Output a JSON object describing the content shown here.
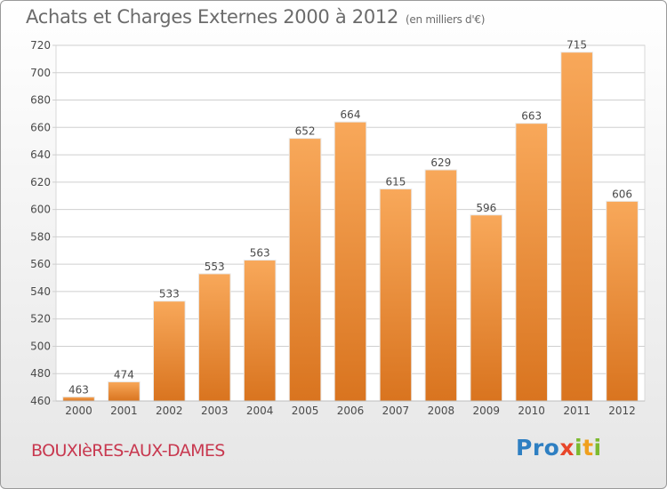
{
  "title": "Achats et Charges Externes 2000 à 2012",
  "unit_note": "(en milliers d'€)",
  "commune": "BOUXIèRES-AUX-DAMES",
  "logo": {
    "text": "Proxiti",
    "letters": [
      {
        "ch": "P",
        "color": "#2e7fc2"
      },
      {
        "ch": "r",
        "color": "#2e7fc2"
      },
      {
        "ch": "o",
        "color": "#2e7fc2"
      },
      {
        "ch": "x",
        "color": "#e8462a"
      },
      {
        "ch": "i",
        "color": "#7cba2f"
      },
      {
        "ch": "t",
        "color": "#f0a01e"
      },
      {
        "ch": "i",
        "color": "#7cba2f"
      }
    ]
  },
  "colors": {
    "bar_light": "#f8a85a",
    "bar_dark": "#d9741f",
    "grid": "#cfcfcf",
    "axis_text": "#4a4a4a"
  },
  "chart_data": {
    "type": "bar",
    "title": "Achats et Charges Externes 2000 à 2012",
    "subtitle": "(en milliers d'€)",
    "categories": [
      "2000",
      "2001",
      "2002",
      "2003",
      "2004",
      "2005",
      "2006",
      "2007",
      "2008",
      "2009",
      "2010",
      "2011",
      "2012"
    ],
    "values": [
      463,
      474,
      533,
      553,
      563,
      652,
      664,
      615,
      629,
      596,
      663,
      715,
      606
    ],
    "ylim": [
      460,
      720
    ],
    "yticks": [
      460,
      480,
      500,
      520,
      540,
      560,
      580,
      600,
      620,
      640,
      660,
      680,
      700,
      720
    ],
    "grid": true,
    "data_labels": true
  }
}
